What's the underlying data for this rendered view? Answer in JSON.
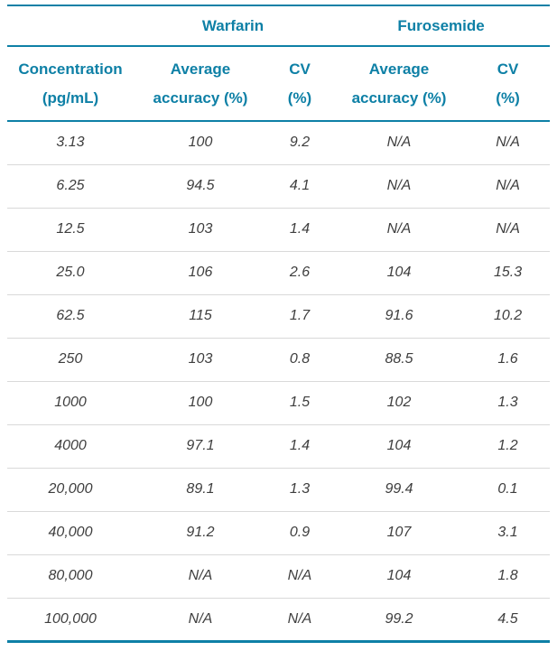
{
  "colors": {
    "accent": "#0e80a6",
    "row_line": "#d9d9d9",
    "body_text": "#3e3e3e",
    "page_bg": "#ffffff"
  },
  "table": {
    "group_headers": {
      "spacer": "",
      "warfarin": "Warfarin",
      "furosemide": "Furosemide"
    },
    "column_headers": {
      "concentration": "Concentration\n(pg/mL)",
      "warfarin_accuracy": "Average\naccuracy (%)",
      "warfarin_cv": "CV\n(%)",
      "furosemide_accuracy": "Average\naccuracy (%)",
      "furosemide_cv": "CV\n(%)"
    },
    "rows": [
      [
        "3.13",
        "100",
        "9.2",
        "N/A",
        "N/A"
      ],
      [
        "6.25",
        "94.5",
        "4.1",
        "N/A",
        "N/A"
      ],
      [
        "12.5",
        "103",
        "1.4",
        "N/A",
        "N/A"
      ],
      [
        "25.0",
        "106",
        "2.6",
        "104",
        "15.3"
      ],
      [
        "62.5",
        "115",
        "1.7",
        "91.6",
        "10.2"
      ],
      [
        "250",
        "103",
        "0.8",
        "88.5",
        "1.6"
      ],
      [
        "1000",
        "100",
        "1.5",
        "102",
        "1.3"
      ],
      [
        "4000",
        "97.1",
        "1.4",
        "104",
        "1.2"
      ],
      [
        "20,000",
        "89.1",
        "1.3",
        "99.4",
        "0.1"
      ],
      [
        "40,000",
        "91.2",
        "0.9",
        "107",
        "3.1"
      ],
      [
        "80,000",
        "N/A",
        "N/A",
        "104",
        "1.8"
      ],
      [
        "100,000",
        "N/A",
        "N/A",
        "99.2",
        "4.5"
      ]
    ]
  }
}
